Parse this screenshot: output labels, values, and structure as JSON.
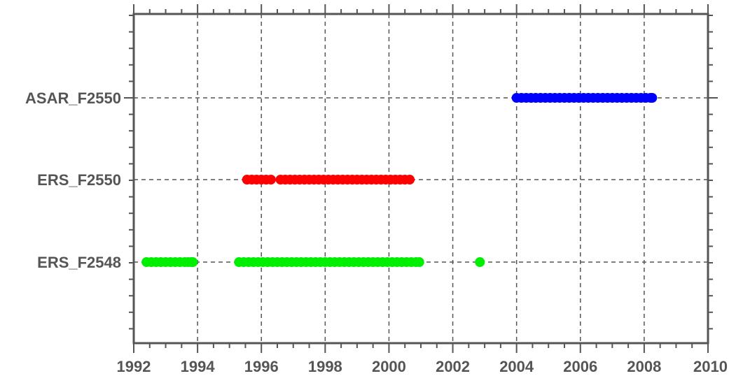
{
  "chart_data": {
    "type": "scatter",
    "title": "",
    "xlabel": "",
    "ylabel": "",
    "xlim": [
      1992,
      2010
    ],
    "x_ticks": [
      "1992",
      "1994",
      "1996",
      "1998",
      "2000",
      "2002",
      "2004",
      "2006",
      "2008",
      "2010"
    ],
    "x_minor_step": 0.5,
    "categories": [
      "ERS_F2548",
      "ERS_F2550",
      "ASAR_F2550"
    ],
    "grid": true,
    "legend": "none",
    "series": [
      {
        "category": "ERS_F2548",
        "color": "#00ee00",
        "x": [
          1992.4,
          1992.55,
          1992.7,
          1992.85,
          1993.0,
          1993.15,
          1993.3,
          1993.45,
          1993.6,
          1993.7,
          1993.8,
          1993.85,
          1995.3,
          1995.45,
          1995.6,
          1995.75,
          1995.9,
          1996.05,
          1996.2,
          1996.35,
          1996.5,
          1996.65,
          1996.8,
          1996.95,
          1997.1,
          1997.25,
          1997.4,
          1997.55,
          1997.7,
          1997.85,
          1998.0,
          1998.15,
          1998.3,
          1998.45,
          1998.6,
          1998.75,
          1998.9,
          1999.05,
          1999.2,
          1999.35,
          1999.5,
          1999.65,
          1999.8,
          1999.95,
          2000.1,
          2000.25,
          2000.4,
          2000.55,
          2000.7,
          2000.85,
          2000.95,
          2002.85
        ]
      },
      {
        "category": "ERS_F2550",
        "color": "#ff0000",
        "x": [
          1995.55,
          1995.7,
          1995.85,
          1996.0,
          1996.15,
          1996.3,
          1996.6,
          1996.75,
          1996.9,
          1997.05,
          1997.2,
          1997.35,
          1997.5,
          1997.65,
          1997.8,
          1997.95,
          1998.1,
          1998.25,
          1998.4,
          1998.55,
          1998.7,
          1998.85,
          1999.0,
          1999.15,
          1999.3,
          1999.45,
          1999.6,
          1999.75,
          1999.9,
          2000.05,
          2000.2,
          2000.35,
          2000.5,
          2000.65
        ]
      },
      {
        "category": "ASAR_F2550",
        "color": "#0000ff",
        "x": [
          2004.0,
          2004.15,
          2004.3,
          2004.45,
          2004.6,
          2004.75,
          2004.9,
          2005.05,
          2005.2,
          2005.35,
          2005.5,
          2005.65,
          2005.8,
          2005.95,
          2006.1,
          2006.25,
          2006.4,
          2006.55,
          2006.7,
          2006.85,
          2007.0,
          2007.15,
          2007.3,
          2007.45,
          2007.6,
          2007.75,
          2007.9,
          2008.05,
          2008.2,
          2008.25
        ]
      }
    ]
  }
}
